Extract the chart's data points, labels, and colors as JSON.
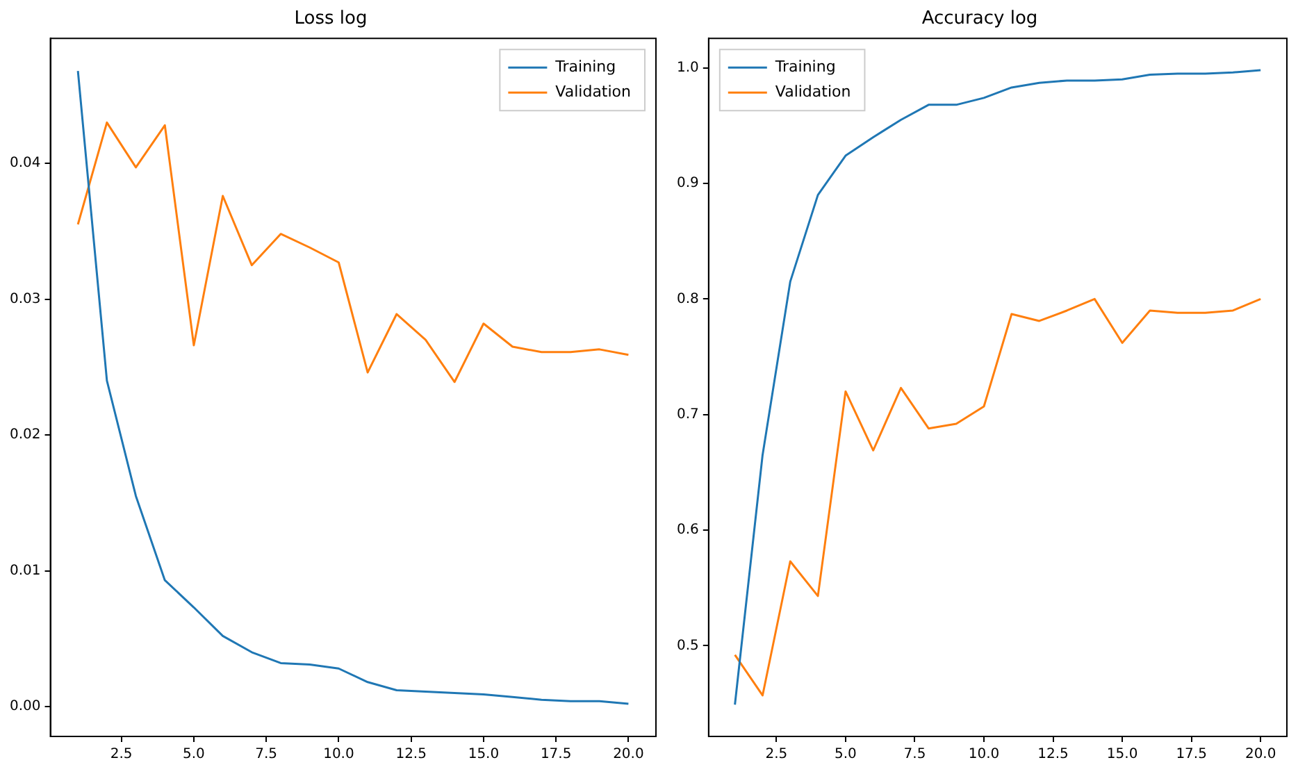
{
  "chart_data": [
    {
      "type": "line",
      "title": "Loss log",
      "x": [
        1,
        2,
        3,
        4,
        5,
        6,
        7,
        8,
        9,
        10,
        11,
        12,
        13,
        14,
        15,
        16,
        17,
        18,
        19,
        20
      ],
      "series": [
        {
          "name": "Training",
          "color": "#1f77b4",
          "values": [
            0.0468,
            0.024,
            0.0155,
            0.0093,
            0.0073,
            0.0052,
            0.004,
            0.0032,
            0.0031,
            0.0028,
            0.0018,
            0.0012,
            0.0011,
            0.001,
            0.0009,
            0.0007,
            0.0005,
            0.0004,
            0.0004,
            0.0002
          ]
        },
        {
          "name": "Validation",
          "color": "#ff7f0e",
          "values": [
            0.0355,
            0.043,
            0.0397,
            0.0428,
            0.0266,
            0.0376,
            0.0325,
            0.0348,
            0.0338,
            0.0327,
            0.0246,
            0.0289,
            0.027,
            0.0239,
            0.0282,
            0.0265,
            0.0261,
            0.0261,
            0.0263,
            0.0259
          ]
        }
      ],
      "xlim": [
        0.05,
        20.95
      ],
      "xticks": [
        {
          "value": 2.5,
          "label": "2.5"
        },
        {
          "value": 5,
          "label": "5.0"
        },
        {
          "value": 7.5,
          "label": "7.5"
        },
        {
          "value": 10,
          "label": "10.0"
        },
        {
          "value": 12.5,
          "label": "12.5"
        },
        {
          "value": 15,
          "label": "15.0"
        },
        {
          "value": 17.5,
          "label": "17.5"
        },
        {
          "value": 20,
          "label": "20.0"
        }
      ],
      "ylim": [
        -0.0022,
        0.0492
      ],
      "yticks": [
        {
          "value": 0,
          "label": "0.00"
        },
        {
          "value": 0.01,
          "label": "0.01"
        },
        {
          "value": 0.02,
          "label": "0.02"
        },
        {
          "value": 0.03,
          "label": "0.03"
        },
        {
          "value": 0.04,
          "label": "0.04"
        }
      ],
      "grid": false,
      "legend": "top right",
      "marker": "none",
      "line_style": "solid"
    },
    {
      "type": "line",
      "title": "Accuracy log",
      "x": [
        1,
        2,
        3,
        4,
        5,
        6,
        7,
        8,
        9,
        10,
        11,
        12,
        13,
        14,
        15,
        16,
        17,
        18,
        19,
        20
      ],
      "series": [
        {
          "name": "Training",
          "color": "#1f77b4",
          "values": [
            0.449,
            0.665,
            0.815,
            0.89,
            0.924,
            0.94,
            0.955,
            0.968,
            0.968,
            0.974,
            0.983,
            0.987,
            0.989,
            0.989,
            0.99,
            0.994,
            0.995,
            0.995,
            0.996,
            0.998
          ]
        },
        {
          "name": "Validation",
          "color": "#ff7f0e",
          "values": [
            0.492,
            0.457,
            0.573,
            0.543,
            0.72,
            0.669,
            0.723,
            0.688,
            0.692,
            0.707,
            0.787,
            0.781,
            0.79,
            0.8,
            0.762,
            0.79,
            0.788,
            0.788,
            0.79,
            0.8
          ]
        }
      ],
      "xlim": [
        0.05,
        20.95
      ],
      "xticks": [
        {
          "value": 2.5,
          "label": "2.5"
        },
        {
          "value": 5,
          "label": "5.0"
        },
        {
          "value": 7.5,
          "label": "7.5"
        },
        {
          "value": 10,
          "label": "10.0"
        },
        {
          "value": 12.5,
          "label": "12.5"
        },
        {
          "value": 15,
          "label": "15.0"
        },
        {
          "value": 17.5,
          "label": "17.5"
        },
        {
          "value": 20,
          "label": "20.0"
        }
      ],
      "ylim": [
        0.4215,
        1.0255
      ],
      "yticks": [
        {
          "value": 0.5,
          "label": "0.5"
        },
        {
          "value": 0.6,
          "label": "0.6"
        },
        {
          "value": 0.7,
          "label": "0.7"
        },
        {
          "value": 0.8,
          "label": "0.8"
        },
        {
          "value": 0.9,
          "label": "0.9"
        },
        {
          "value": 1,
          "label": "1.0"
        }
      ],
      "grid": false,
      "legend": "top left",
      "marker": "none",
      "line_style": "solid"
    }
  ]
}
